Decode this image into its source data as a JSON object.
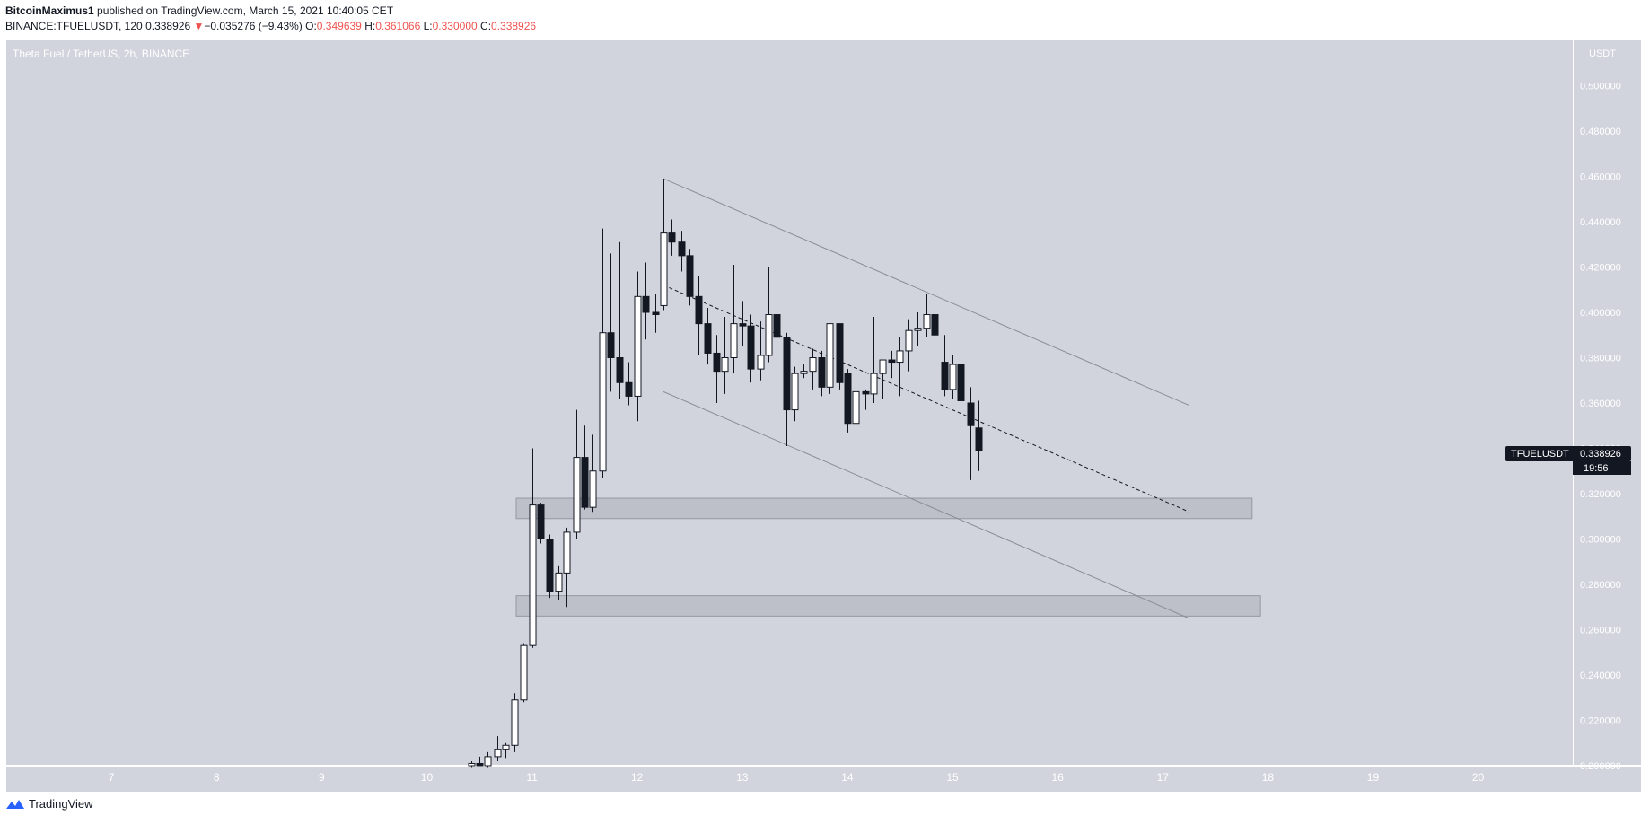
{
  "header": {
    "author": "BitcoinMaximus1",
    "published": " published on TradingView.com, March 15, 2021 10:40:05 CET",
    "symbol": "BINANCE:TFUELUSDT, 120",
    "last": "0.338926",
    "change_arrow": "▼",
    "change": "−0.035276 (−9.43%)",
    "o_label": "O:",
    "o_value": "0.349639",
    "h_label": "H:",
    "h_value": "0.361066",
    "l_label": "L:",
    "l_value": "0.330000",
    "c_label": "C:",
    "c_value": "0.338926"
  },
  "footer": {
    "brand": "TradingView",
    "logo_icon": "tradingview-logo-icon"
  },
  "colors": {
    "background": "#d1d4dc",
    "down": "#ef5350",
    "candle_up": "#ffffff",
    "candle_down": "#131722",
    "line": "#8a8d95"
  },
  "chart_data": {
    "type": "candlestick",
    "title": "Theta Fuel / TetherUS, 2h, BINANCE",
    "y_unit": "USDT",
    "ylim": [
      0.2,
      0.52
    ],
    "y_ticks": [
      "0.500000",
      "0.480000",
      "0.460000",
      "0.440000",
      "0.420000",
      "0.400000",
      "0.380000",
      "0.360000",
      "0.340000",
      "0.320000",
      "0.300000",
      "0.280000",
      "0.260000",
      "0.240000",
      "0.220000",
      "0.200000"
    ],
    "x_ticks": [
      "7",
      "8",
      "9",
      "10",
      "11",
      "12",
      "13",
      "14",
      "15",
      "16",
      "17",
      "18",
      "19",
      "20"
    ],
    "xlim": [
      6.0,
      20.9
    ],
    "grid": false,
    "last_price": {
      "symbol": "TFUELUSDT",
      "value": "0.338926",
      "countdown": "19:56"
    },
    "candles": [
      {
        "t": 10.42,
        "o": 0.2,
        "h": 0.202,
        "l": 0.199,
        "c": 0.201
      },
      {
        "t": 10.5,
        "o": 0.201,
        "h": 0.204,
        "l": 0.2,
        "c": 0.2
      },
      {
        "t": 10.58,
        "o": 0.2,
        "h": 0.206,
        "l": 0.199,
        "c": 0.204
      },
      {
        "t": 10.67,
        "o": 0.204,
        "h": 0.213,
        "l": 0.202,
        "c": 0.207
      },
      {
        "t": 10.75,
        "o": 0.207,
        "h": 0.21,
        "l": 0.203,
        "c": 0.209
      },
      {
        "t": 10.83,
        "o": 0.209,
        "h": 0.232,
        "l": 0.206,
        "c": 0.229
      },
      {
        "t": 10.92,
        "o": 0.229,
        "h": 0.254,
        "l": 0.228,
        "c": 0.253
      },
      {
        "t": 11.0,
        "o": 0.253,
        "h": 0.34,
        "l": 0.252,
        "c": 0.315
      },
      {
        "t": 11.08,
        "o": 0.315,
        "h": 0.316,
        "l": 0.298,
        "c": 0.3
      },
      {
        "t": 11.17,
        "o": 0.3,
        "h": 0.302,
        "l": 0.274,
        "c": 0.277
      },
      {
        "t": 11.25,
        "o": 0.277,
        "h": 0.288,
        "l": 0.273,
        "c": 0.285
      },
      {
        "t": 11.33,
        "o": 0.285,
        "h": 0.305,
        "l": 0.27,
        "c": 0.303
      },
      {
        "t": 11.42,
        "o": 0.303,
        "h": 0.357,
        "l": 0.3,
        "c": 0.336
      },
      {
        "t": 11.5,
        "o": 0.336,
        "h": 0.35,
        "l": 0.313,
        "c": 0.314
      },
      {
        "t": 11.58,
        "o": 0.314,
        "h": 0.346,
        "l": 0.312,
        "c": 0.33
      },
      {
        "t": 11.67,
        "o": 0.33,
        "h": 0.437,
        "l": 0.327,
        "c": 0.391
      },
      {
        "t": 11.75,
        "o": 0.391,
        "h": 0.426,
        "l": 0.365,
        "c": 0.38
      },
      {
        "t": 11.83,
        "o": 0.38,
        "h": 0.431,
        "l": 0.362,
        "c": 0.369
      },
      {
        "t": 11.92,
        "o": 0.369,
        "h": 0.378,
        "l": 0.359,
        "c": 0.363
      },
      {
        "t": 12.0,
        "o": 0.363,
        "h": 0.418,
        "l": 0.352,
        "c": 0.407
      },
      {
        "t": 12.08,
        "o": 0.407,
        "h": 0.422,
        "l": 0.388,
        "c": 0.4
      },
      {
        "t": 12.17,
        "o": 0.4,
        "h": 0.408,
        "l": 0.391,
        "c": 0.399
      },
      {
        "t": 12.25,
        "o": 0.403,
        "h": 0.459,
        "l": 0.401,
        "c": 0.435
      },
      {
        "t": 12.33,
        "o": 0.435,
        "h": 0.441,
        "l": 0.425,
        "c": 0.431
      },
      {
        "t": 12.42,
        "o": 0.431,
        "h": 0.436,
        "l": 0.418,
        "c": 0.425
      },
      {
        "t": 12.5,
        "o": 0.425,
        "h": 0.428,
        "l": 0.403,
        "c": 0.407
      },
      {
        "t": 12.58,
        "o": 0.407,
        "h": 0.416,
        "l": 0.381,
        "c": 0.395
      },
      {
        "t": 12.67,
        "o": 0.395,
        "h": 0.402,
        "l": 0.377,
        "c": 0.382
      },
      {
        "t": 12.75,
        "o": 0.382,
        "h": 0.39,
        "l": 0.36,
        "c": 0.374
      },
      {
        "t": 12.83,
        "o": 0.374,
        "h": 0.398,
        "l": 0.364,
        "c": 0.38
      },
      {
        "t": 12.92,
        "o": 0.38,
        "h": 0.421,
        "l": 0.373,
        "c": 0.395
      },
      {
        "t": 13.0,
        "o": 0.395,
        "h": 0.405,
        "l": 0.385,
        "c": 0.394
      },
      {
        "t": 13.08,
        "o": 0.394,
        "h": 0.399,
        "l": 0.369,
        "c": 0.375
      },
      {
        "t": 13.17,
        "o": 0.375,
        "h": 0.396,
        "l": 0.37,
        "c": 0.381
      },
      {
        "t": 13.25,
        "o": 0.381,
        "h": 0.42,
        "l": 0.378,
        "c": 0.399
      },
      {
        "t": 13.33,
        "o": 0.399,
        "h": 0.403,
        "l": 0.387,
        "c": 0.389
      },
      {
        "t": 13.42,
        "o": 0.389,
        "h": 0.391,
        "l": 0.341,
        "c": 0.357
      },
      {
        "t": 13.5,
        "o": 0.357,
        "h": 0.376,
        "l": 0.352,
        "c": 0.373
      },
      {
        "t": 13.58,
        "o": 0.373,
        "h": 0.377,
        "l": 0.371,
        "c": 0.374
      },
      {
        "t": 13.67,
        "o": 0.374,
        "h": 0.384,
        "l": 0.366,
        "c": 0.38
      },
      {
        "t": 13.75,
        "o": 0.38,
        "h": 0.383,
        "l": 0.363,
        "c": 0.367
      },
      {
        "t": 13.83,
        "o": 0.367,
        "h": 0.395,
        "l": 0.364,
        "c": 0.395
      },
      {
        "t": 13.92,
        "o": 0.395,
        "h": 0.395,
        "l": 0.366,
        "c": 0.369
      },
      {
        "t": 14.0,
        "o": 0.373,
        "h": 0.375,
        "l": 0.347,
        "c": 0.351
      },
      {
        "t": 14.08,
        "o": 0.351,
        "h": 0.37,
        "l": 0.347,
        "c": 0.365
      },
      {
        "t": 14.17,
        "o": 0.365,
        "h": 0.366,
        "l": 0.357,
        "c": 0.364
      },
      {
        "t": 14.25,
        "o": 0.364,
        "h": 0.398,
        "l": 0.36,
        "c": 0.373
      },
      {
        "t": 14.33,
        "o": 0.373,
        "h": 0.379,
        "l": 0.362,
        "c": 0.379
      },
      {
        "t": 14.42,
        "o": 0.379,
        "h": 0.383,
        "l": 0.371,
        "c": 0.378
      },
      {
        "t": 14.5,
        "o": 0.378,
        "h": 0.389,
        "l": 0.363,
        "c": 0.383
      },
      {
        "t": 14.58,
        "o": 0.383,
        "h": 0.397,
        "l": 0.374,
        "c": 0.392
      },
      {
        "t": 14.67,
        "o": 0.392,
        "h": 0.4,
        "l": 0.385,
        "c": 0.393
      },
      {
        "t": 14.75,
        "o": 0.393,
        "h": 0.408,
        "l": 0.389,
        "c": 0.399
      },
      {
        "t": 14.83,
        "o": 0.399,
        "h": 0.4,
        "l": 0.38,
        "c": 0.39
      },
      {
        "t": 14.92,
        "o": 0.378,
        "h": 0.39,
        "l": 0.363,
        "c": 0.366
      },
      {
        "t": 15.0,
        "o": 0.366,
        "h": 0.381,
        "l": 0.362,
        "c": 0.377
      },
      {
        "t": 15.08,
        "o": 0.377,
        "h": 0.392,
        "l": 0.361,
        "c": 0.361
      },
      {
        "t": 15.17,
        "o": 0.36,
        "h": 0.367,
        "l": 0.326,
        "c": 0.35
      },
      {
        "t": 15.25,
        "o": 0.349,
        "h": 0.361,
        "l": 0.33,
        "c": 0.339
      }
    ],
    "lines": [
      {
        "name": "upper-channel",
        "x1": 12.25,
        "y1": 0.459,
        "x2": 17.25,
        "y2": 0.359,
        "style": "solid"
      },
      {
        "name": "lower-channel",
        "x1": 12.25,
        "y1": 0.365,
        "x2": 17.25,
        "y2": 0.265,
        "style": "solid"
      },
      {
        "name": "mid-dashed",
        "x1": 12.25,
        "y1": 0.412,
        "x2": 17.25,
        "y2": 0.312,
        "style": "dashed"
      }
    ],
    "zones": [
      {
        "name": "support-zone-upper",
        "x1": 10.85,
        "x2": 17.85,
        "y1": 0.309,
        "y2": 0.318
      },
      {
        "name": "support-zone-lower",
        "x1": 10.85,
        "x2": 17.93,
        "y1": 0.266,
        "y2": 0.275
      }
    ]
  }
}
